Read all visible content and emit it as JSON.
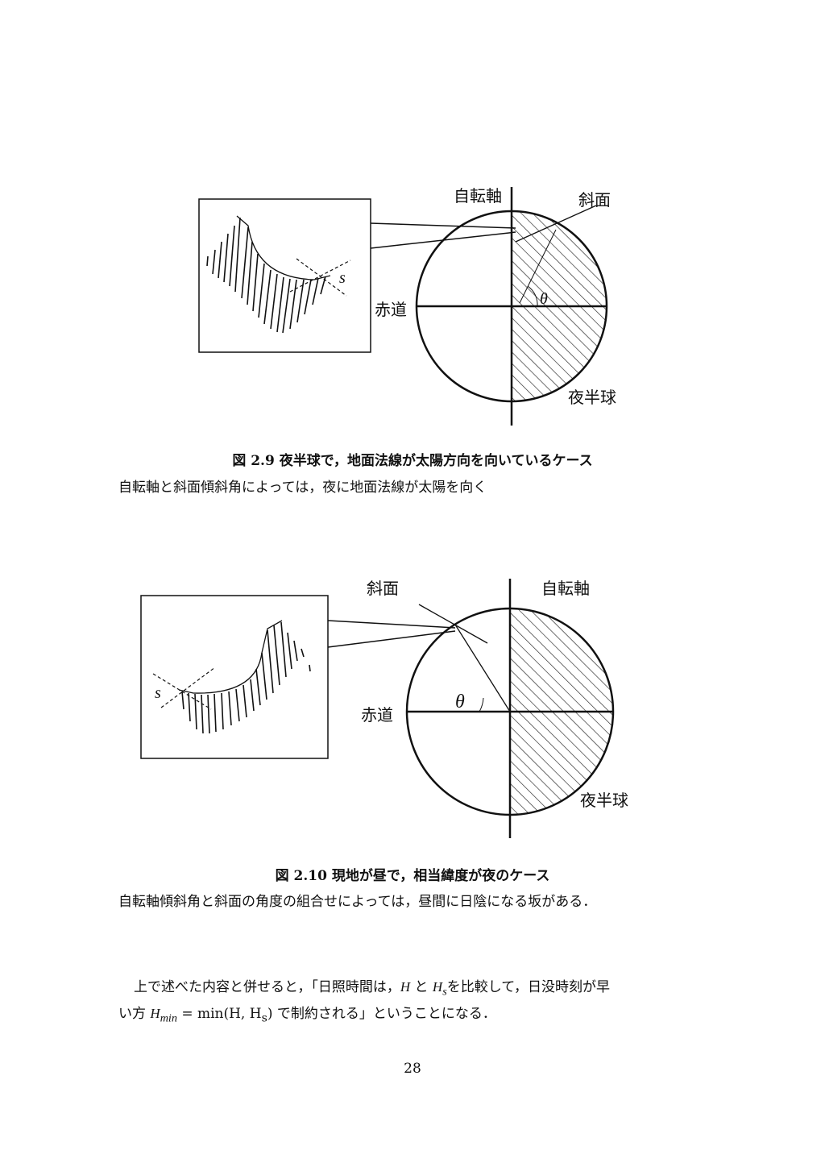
{
  "figure1": {
    "labels": {
      "axis": "自転軸",
      "slope": "斜面",
      "theta": "θ",
      "equator": "赤道",
      "night": "夜半球",
      "s": "s"
    },
    "caption": "図 2.9 夜半球で，地面法線が太陽方向を向いているケース",
    "description": "自転軸と斜面傾斜角によっては，夜に地面法線が太陽を向く"
  },
  "figure2": {
    "labels": {
      "axis": "自転軸",
      "slope": "斜面",
      "theta": "θ",
      "equator": "赤道",
      "night": "夜半球",
      "s": "s"
    },
    "caption": "図 2.10 現地が昼で，相当緯度が夜のケース",
    "description": "自転軸傾斜角と斜面の角度の組合せによっては，昼間に日陰になる坂がある．"
  },
  "paragraph": {
    "line1_a": "上で述べた内容と併せると，「日照時間は，",
    "H": "H",
    "to": " と ",
    "Hs_base": "H",
    "Hs_sub": "s",
    "line1_b": "を比較して，日没時刻が早",
    "line2_a": "い方 ",
    "Hmin_base": "H",
    "Hmin_sub": "min",
    "formula": " = min(H, H",
    "formula_sub": "s",
    "formula_end": ")",
    "line2_b": " で制約される」ということになる．"
  },
  "page_number": "28"
}
